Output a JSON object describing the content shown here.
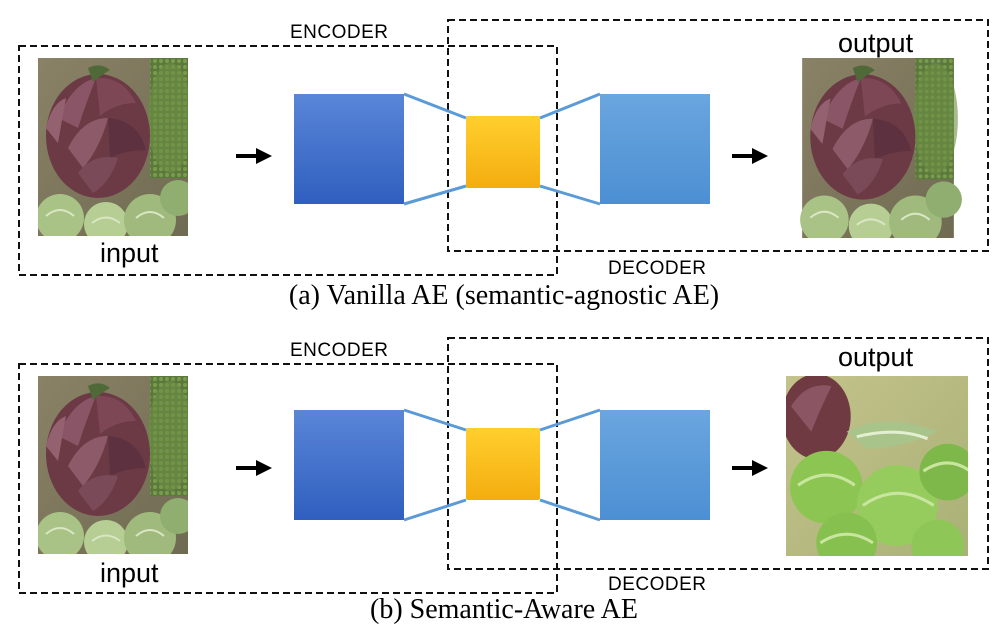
{
  "panels": [
    {
      "encoder_label": "ENCODER",
      "decoder_label": "DECODER",
      "input_label": "input",
      "output_label": "output",
      "caption": "(a) Vanilla AE (semantic-agnostic AE)",
      "output_image": "reconstruction of the input artichoke"
    },
    {
      "encoder_label": "ENCODER",
      "decoder_label": "DECODER",
      "input_label": "input",
      "output_label": "output",
      "caption": "(b) Semantic-Aware AE",
      "output_image": "different image of brussels sprouts"
    }
  ],
  "colors": {
    "encoder_block": "#3f6fca",
    "latent_block": "#f7b915",
    "decoder_block": "#5b9ad8",
    "connector": "#5b9ad8"
  }
}
